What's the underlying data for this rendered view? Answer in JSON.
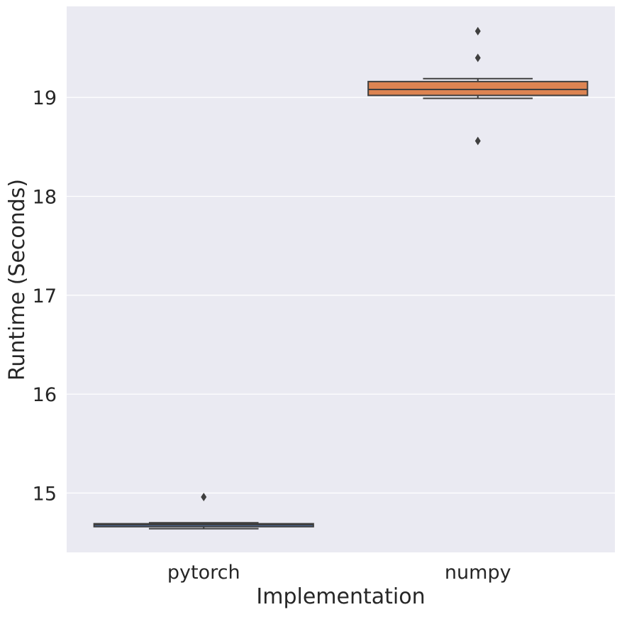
{
  "chart_data": {
    "type": "box",
    "title": "",
    "xlabel": "Implementation",
    "ylabel": "Runtime (Seconds)",
    "categories": [
      "pytorch",
      "numpy"
    ],
    "ylim": [
      14.4,
      19.92
    ],
    "yticks": [
      15,
      16,
      17,
      18,
      19
    ],
    "ytick_labels": [
      "15",
      "16",
      "17",
      "18",
      "19"
    ],
    "grid": true,
    "legend": "none",
    "boxes": [
      {
        "name": "pytorch",
        "whisker_low": 14.64,
        "q1": 14.66,
        "median": 14.68,
        "q3": 14.69,
        "whisker_high": 14.7,
        "outliers": [
          14.96
        ],
        "color": "#4c72b0"
      },
      {
        "name": "numpy",
        "whisker_low": 18.99,
        "q1": 19.02,
        "median": 19.08,
        "q3": 19.16,
        "whisker_high": 19.19,
        "outliers": [
          19.67,
          19.4,
          18.56
        ],
        "color": "#dd8452"
      }
    ],
    "colors": {
      "background": "#eaeaf2",
      "grid": "#ffffff",
      "box_edge": "#3f3f3f",
      "text": "#262626"
    }
  }
}
